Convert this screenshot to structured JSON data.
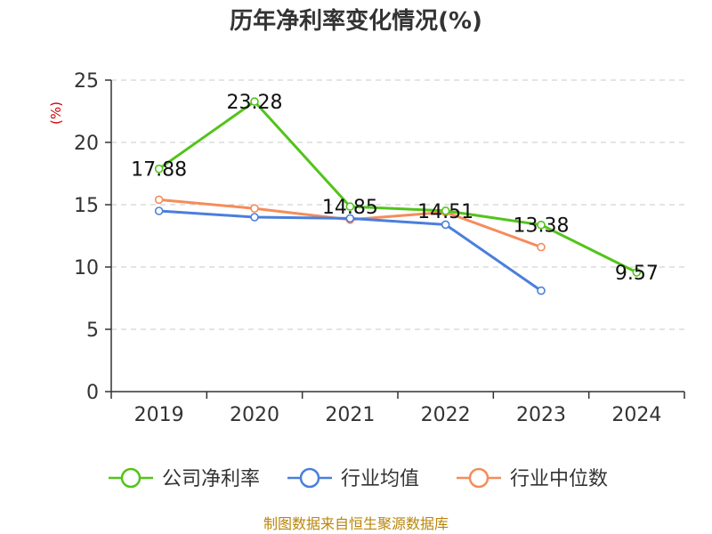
{
  "chart_data": {
    "type": "line",
    "title": "历年净利率变化情况(%)",
    "ylabel": "(%)",
    "xlabel": "",
    "categories": [
      "2019",
      "2020",
      "2021",
      "2022",
      "2023",
      "2024"
    ],
    "ylim": [
      0,
      25
    ],
    "yticks": [
      0,
      5,
      10,
      15,
      20,
      25
    ],
    "grid": true,
    "legend_position": "bottom",
    "series": [
      {
        "name": "公司净利率",
        "color": "#52c41a",
        "values": [
          17.88,
          23.28,
          14.85,
          14.51,
          13.38,
          9.57
        ],
        "labels": [
          "17.88",
          "23.28",
          "14.85",
          "14.51",
          "13.38",
          "9.57"
        ]
      },
      {
        "name": "行业均值",
        "color": "#4a7fdc",
        "values": [
          14.5,
          14.0,
          13.9,
          13.4,
          8.1,
          null
        ],
        "labels": []
      },
      {
        "name": "行业中位数",
        "color": "#f58c5a",
        "values": [
          15.4,
          14.7,
          13.8,
          14.4,
          11.6,
          null
        ],
        "labels": []
      }
    ]
  },
  "source": {
    "text": "制图数据来自恒生聚源数据库",
    "color": "#b8860b"
  },
  "unit_color": "#cc0000"
}
